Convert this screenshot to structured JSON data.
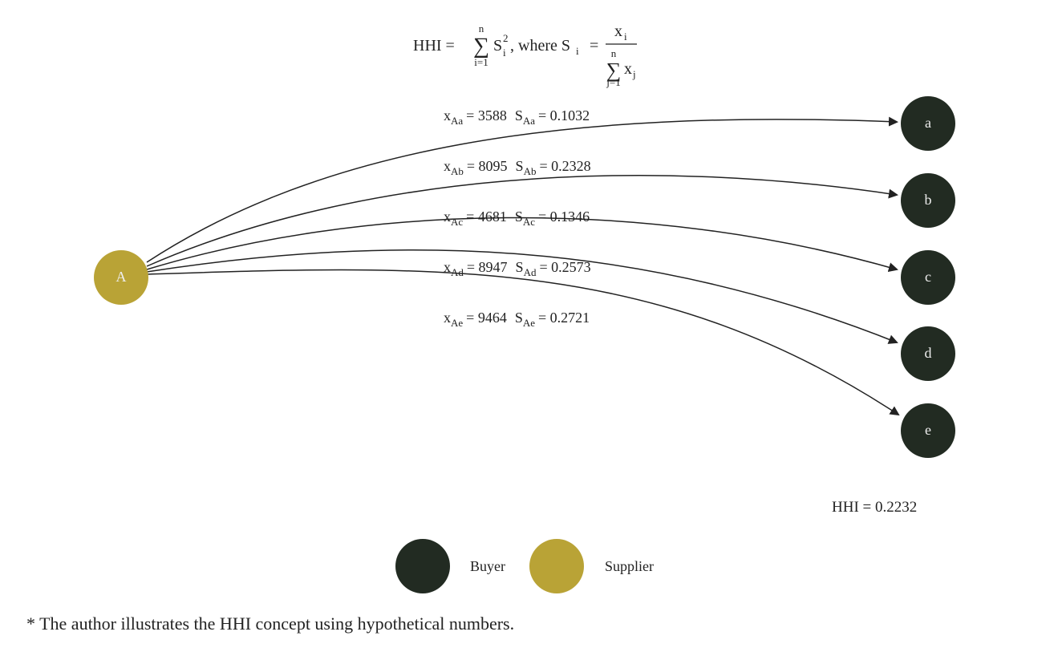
{
  "formula": {
    "lhs": "HHI =",
    "sum": "∑",
    "sum_upper": "n",
    "sum_lower": "i=1",
    "term": "S",
    "term_sub": "i",
    "term_sup": "2",
    "where": ", where S",
    "where_sub": "i",
    "equals": "=",
    "numerator": "x",
    "numerator_sub": "i",
    "denominator_sum": "∑",
    "denominator_upper": "n",
    "denominator_lower": "j=1",
    "denominator": "x",
    "denominator_sub": "j"
  },
  "supplier": {
    "label": "A"
  },
  "buyers": [
    {
      "label": "a"
    },
    {
      "label": "b"
    },
    {
      "label": "c"
    },
    {
      "label": "d"
    },
    {
      "label": "e"
    }
  ],
  "edges": [
    {
      "x_symbol": "x",
      "x_sub": "Aa",
      "x_text": "= 3588",
      "s_symbol": "S",
      "s_sub": "Aa",
      "s_text": "= 0.1032"
    },
    {
      "x_symbol": "x",
      "x_sub": "Ab",
      "x_text": "= 8095",
      "s_symbol": "S",
      "s_sub": "Ab",
      "s_text": "= 0.2328"
    },
    {
      "x_symbol": "x",
      "x_sub": "Ac",
      "x_text": "= 4681",
      "s_symbol": "S",
      "s_sub": "Ac",
      "s_text": "= 0.1346"
    },
    {
      "x_symbol": "x",
      "x_sub": "Ad",
      "x_text": "= 8947",
      "s_symbol": "S",
      "s_sub": "Ad",
      "s_text": "= 0.2573"
    },
    {
      "x_symbol": "x",
      "x_sub": "Ae",
      "x_text": "= 9464",
      "s_symbol": "S",
      "s_sub": "Ae",
      "s_text": "= 0.2721"
    }
  ],
  "result": "HHI = 0.2232",
  "legend": [
    {
      "label": "Buyer"
    },
    {
      "label": "Supplier"
    }
  ],
  "footnote": "* The author illustrates the HHI concept using hypothetical numbers."
}
